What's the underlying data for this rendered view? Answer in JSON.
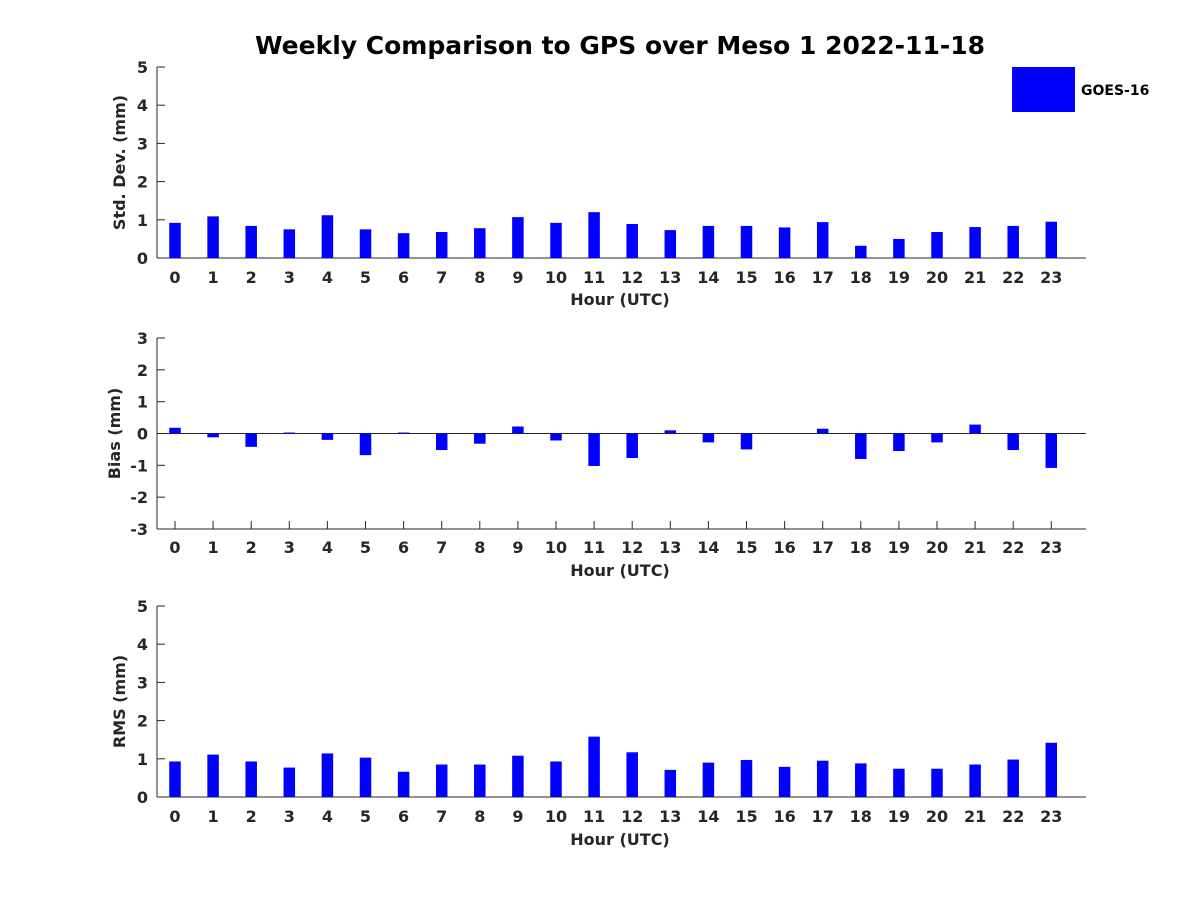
{
  "figure": {
    "title": "Weekly Comparison to GPS over Meso 1 2022-11-18",
    "legend": {
      "label": "GOES-16",
      "color": "#0000ff",
      "placement": "top-right"
    }
  },
  "chart_data": [
    {
      "type": "bar",
      "title": "Weekly Comparison to GPS over Meso 1 2022-11-18",
      "xlabel": "Hour (UTC)",
      "ylabel": "Std. Dev. (mm)",
      "ylim": [
        0,
        5
      ],
      "yticks": [
        0,
        1,
        2,
        3,
        4,
        5
      ],
      "categories": [
        "0",
        "1",
        "2",
        "3",
        "4",
        "5",
        "6",
        "7",
        "8",
        "9",
        "10",
        "11",
        "12",
        "13",
        "14",
        "15",
        "16",
        "17",
        "18",
        "19",
        "20",
        "21",
        "22",
        "23"
      ],
      "series": [
        {
          "name": "GOES-16",
          "color": "#0000ff",
          "values": [
            0.92,
            1.09,
            0.84,
            0.75,
            1.12,
            0.75,
            0.65,
            0.68,
            0.78,
            1.07,
            0.92,
            1.2,
            0.89,
            0.73,
            0.84,
            0.84,
            0.8,
            0.94,
            0.32,
            0.5,
            0.68,
            0.81,
            0.84,
            0.95
          ]
        }
      ],
      "grid": false
    },
    {
      "type": "bar",
      "xlabel": "Hour (UTC)",
      "ylabel": "Bias (mm)",
      "ylim": [
        -3,
        3
      ],
      "yticks": [
        -3,
        -2,
        -1,
        0,
        1,
        2,
        3
      ],
      "categories": [
        "0",
        "1",
        "2",
        "3",
        "4",
        "5",
        "6",
        "7",
        "8",
        "9",
        "10",
        "11",
        "12",
        "13",
        "14",
        "15",
        "16",
        "17",
        "18",
        "19",
        "20",
        "21",
        "22",
        "23"
      ],
      "series": [
        {
          "name": "GOES-16",
          "color": "#0000ff",
          "values": [
            0.18,
            -0.12,
            -0.42,
            0.03,
            -0.2,
            -0.68,
            0.03,
            -0.52,
            -0.32,
            0.22,
            -0.22,
            -1.02,
            -0.77,
            0.1,
            -0.28,
            -0.5,
            0.0,
            0.15,
            -0.8,
            -0.55,
            -0.28,
            0.28,
            -0.52,
            -1.08
          ]
        }
      ],
      "zero_line": true,
      "grid": false
    },
    {
      "type": "bar",
      "xlabel": "Hour (UTC)",
      "ylabel": "RMS (mm)",
      "ylim": [
        0,
        5
      ],
      "yticks": [
        0,
        1,
        2,
        3,
        4,
        5
      ],
      "categories": [
        "0",
        "1",
        "2",
        "3",
        "4",
        "5",
        "6",
        "7",
        "8",
        "9",
        "10",
        "11",
        "12",
        "13",
        "14",
        "15",
        "16",
        "17",
        "18",
        "19",
        "20",
        "21",
        "22",
        "23"
      ],
      "series": [
        {
          "name": "GOES-16",
          "color": "#0000ff",
          "values": [
            0.93,
            1.11,
            0.93,
            0.77,
            1.14,
            1.03,
            0.66,
            0.85,
            0.85,
            1.08,
            0.93,
            1.58,
            1.17,
            0.71,
            0.9,
            0.97,
            0.79,
            0.95,
            0.88,
            0.74,
            0.74,
            0.85,
            0.98,
            1.42
          ]
        }
      ],
      "grid": false
    }
  ]
}
